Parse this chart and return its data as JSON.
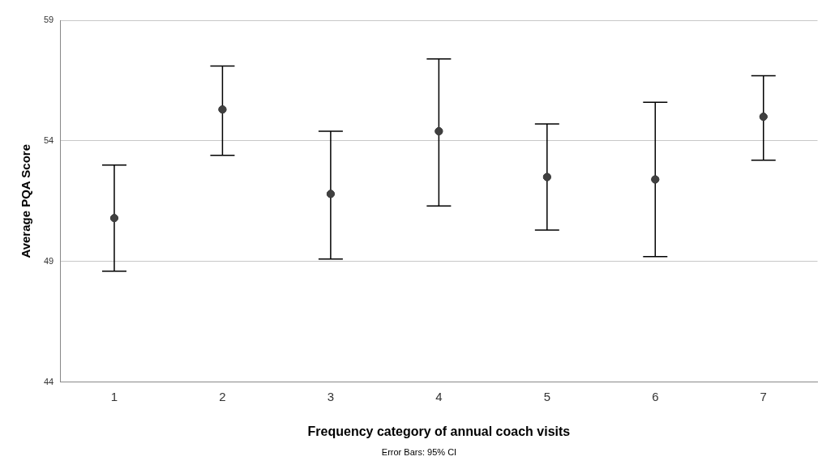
{
  "chart_data": {
    "type": "scatter",
    "categories": [
      "1",
      "2",
      "3",
      "4",
      "5",
      "6",
      "7"
    ],
    "values": [
      50.8,
      55.3,
      51.8,
      54.4,
      52.5,
      52.4,
      55.0
    ],
    "errors": [
      [
        48.6,
        53.0
      ],
      [
        53.4,
        57.1
      ],
      [
        49.1,
        54.4
      ],
      [
        51.3,
        57.4
      ],
      [
        50.3,
        54.7
      ],
      [
        49.2,
        55.6
      ],
      [
        53.2,
        56.7
      ]
    ],
    "color": "#404040",
    "marker": "circle",
    "xlabel": "Frequency category of annual coach visits",
    "ylabel": "Average PQA Score",
    "ylim": [
      44,
      59
    ],
    "yticks": [
      44,
      49,
      54,
      59
    ],
    "grid": "y",
    "annotations": [
      "Error Bars: 95% CI"
    ]
  }
}
